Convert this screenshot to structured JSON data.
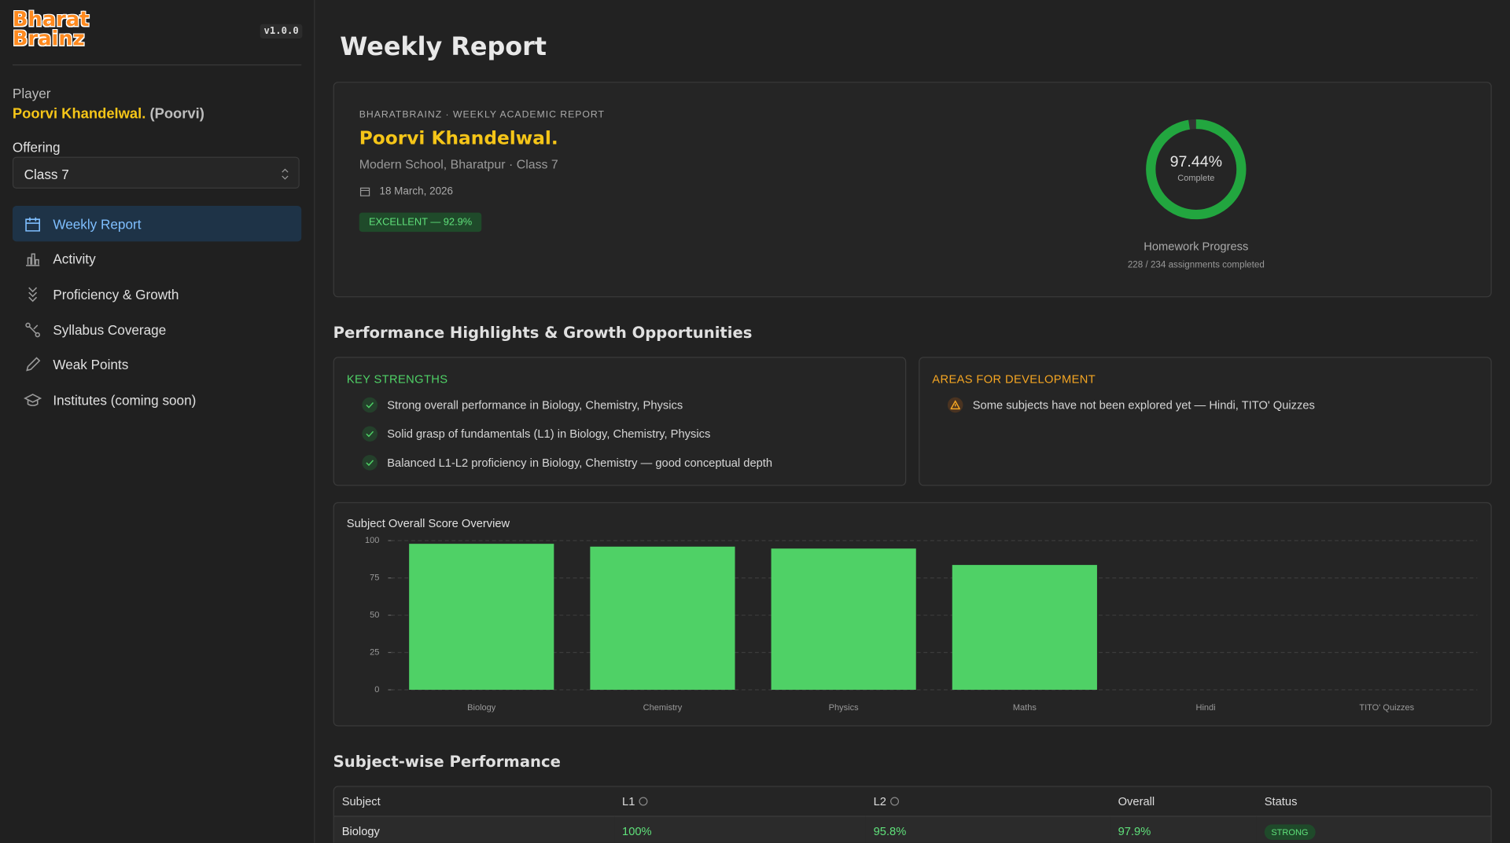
{
  "sidebar": {
    "logo_line1": "Bharat",
    "logo_line2": "Brainz",
    "version": "v1.0.0",
    "player_label": "Player",
    "player_name": "Poorvi Khandelwal.",
    "player_nick": "(Poorvi)",
    "offering_label": "Offering",
    "offering_value": "Class 7",
    "nav": [
      "Weekly Report",
      "Activity",
      "Proficiency & Growth",
      "Syllabus Coverage",
      "Weak Points",
      "Institutes (coming soon)"
    ]
  },
  "header": {
    "title": "Weekly Report"
  },
  "report_card": {
    "kicker": "BHARATBRAINZ · WEEKLY ACADEMIC REPORT",
    "name": "Poorvi Khandelwal.",
    "school": "Modern School, Bharatpur · Class 7",
    "date": "18 March, 2026",
    "badge": "EXCELLENT — 92.9%",
    "progress": {
      "value": 97.44,
      "label": "97.44%",
      "sublabel": "Complete",
      "title": "Homework Progress",
      "detail": "228 / 234 assignments completed"
    }
  },
  "highlights": {
    "title": "Performance Highlights & Growth Opportunities",
    "strengths": {
      "title": "KEY STRENGTHS",
      "items": [
        "Strong overall performance in Biology, Chemistry, Physics",
        "Solid grasp of fundamentals (L1) in Biology, Chemistry, Physics",
        "Balanced L1-L2 proficiency in Biology, Chemistry — good conceptual depth"
      ]
    },
    "development": {
      "title": "AREAS FOR DEVELOPMENT",
      "items": [
        "Some subjects have not been explored yet — Hindi, TITO' Quizzes"
      ]
    }
  },
  "chart_data": {
    "type": "bar",
    "title": "Subject Overall Score Overview",
    "categories": [
      "Biology",
      "Chemistry",
      "Physics",
      "Maths",
      "Hindi",
      "TITO' Quizzes"
    ],
    "values": [
      97.9,
      96,
      94.7,
      83.7,
      null,
      null
    ],
    "color": "#4fd166",
    "ylim": [
      0,
      100
    ],
    "yticks": [
      0,
      25,
      50,
      75,
      100
    ],
    "grid": true
  },
  "table": {
    "title": "Subject-wise Performance",
    "columns": [
      "Subject",
      "L1",
      "L2",
      "Overall",
      "Status"
    ],
    "rows": [
      [
        "Biology",
        "100%",
        "95.8%",
        "97.9%",
        "STRONG"
      ]
    ]
  }
}
